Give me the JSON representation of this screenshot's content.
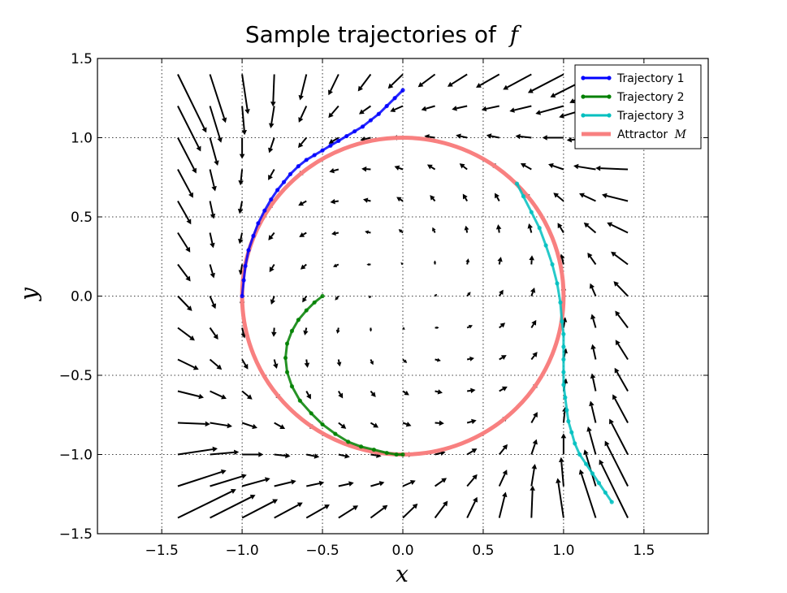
{
  "chart_data": {
    "type": "line",
    "title": "Sample trajectories of",
    "title_symbol": "f",
    "xlabel": "x",
    "ylabel": "y",
    "xlim": [
      -1.9,
      1.9
    ],
    "ylim": [
      -1.5,
      1.5
    ],
    "xticks": [
      -1.5,
      -1.0,
      -0.5,
      0.0,
      0.5,
      1.0,
      1.5
    ],
    "yticks": [
      -1.5,
      -1.0,
      -0.5,
      0.0,
      0.5,
      1.0,
      1.5
    ],
    "xtick_labels": [
      "−1.5",
      "−1.0",
      "−0.5",
      "0.0",
      "0.5",
      "1.0",
      "1.5"
    ],
    "ytick_labels": [
      "−1.5",
      "−1.0",
      "−0.5",
      "0.0",
      "0.5",
      "1.0",
      "1.5"
    ],
    "grid": true,
    "legend_position": "top-right",
    "quiver": {
      "field": "r_dot = r*(1 - r^2), theta_dot = 1",
      "grid_min": -1.4,
      "grid_max": 1.4,
      "count": 15,
      "color": "#000000"
    },
    "attractor": {
      "name": "Attractor",
      "symbol": "M",
      "shape": "unit circle",
      "radius": 1.0,
      "color": "#f88080"
    },
    "series": [
      {
        "name": "Trajectory 1",
        "color": "#0000ff",
        "x": [
          0.0,
          -0.05,
          -0.1,
          -0.15,
          -0.2,
          -0.25,
          -0.3,
          -0.35,
          -0.4,
          -0.45,
          -0.5,
          -0.55,
          -0.6,
          -0.65,
          -0.7,
          -0.74,
          -0.78,
          -0.82,
          -0.86,
          -0.9,
          -0.93,
          -0.96,
          -0.98,
          -0.99,
          -1.0
        ],
        "y": [
          1.3,
          1.25,
          1.2,
          1.15,
          1.11,
          1.07,
          1.04,
          1.01,
          0.98,
          0.95,
          0.92,
          0.89,
          0.86,
          0.82,
          0.77,
          0.72,
          0.67,
          0.61,
          0.54,
          0.46,
          0.38,
          0.29,
          0.19,
          0.1,
          0.0
        ]
      },
      {
        "name": "Trajectory 2",
        "color": "#008000",
        "x": [
          -0.5,
          -0.55,
          -0.6,
          -0.65,
          -0.69,
          -0.72,
          -0.73,
          -0.72,
          -0.69,
          -0.64,
          -0.57,
          -0.5,
          -0.42,
          -0.34,
          -0.26,
          -0.18,
          -0.1,
          -0.04,
          0.0
        ],
        "y": [
          0.0,
          -0.04,
          -0.09,
          -0.15,
          -0.22,
          -0.3,
          -0.39,
          -0.48,
          -0.57,
          -0.66,
          -0.74,
          -0.81,
          -0.87,
          -0.92,
          -0.95,
          -0.97,
          -0.99,
          -1.0,
          -1.0
        ]
      },
      {
        "name": "Trajectory 3",
        "color": "#00bfbf",
        "x": [
          1.3,
          1.26,
          1.22,
          1.18,
          1.14,
          1.1,
          1.07,
          1.05,
          1.03,
          1.02,
          1.01,
          1.0,
          1.0,
          1.0,
          1.0,
          1.0,
          0.99,
          0.98,
          0.96,
          0.93,
          0.89,
          0.85,
          0.8,
          0.75,
          0.71
        ],
        "y": [
          -1.3,
          -1.24,
          -1.18,
          -1.12,
          -1.06,
          -1.0,
          -0.93,
          -0.86,
          -0.79,
          -0.72,
          -0.64,
          -0.56,
          -0.48,
          -0.4,
          -0.32,
          -0.24,
          -0.16,
          -0.04,
          0.08,
          0.2,
          0.32,
          0.43,
          0.53,
          0.63,
          0.71
        ]
      }
    ]
  }
}
